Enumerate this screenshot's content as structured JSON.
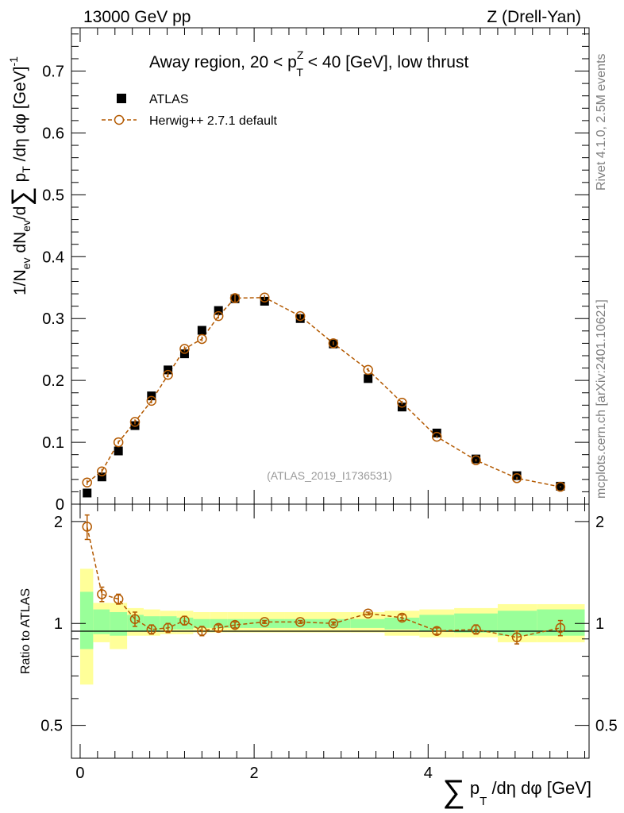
{
  "header": {
    "energy": "13000 GeV pp",
    "process": "Z (Drell-Yan)"
  },
  "side_labels": {
    "rivet": "Rivet 4.1.0,  2.5M events",
    "mcplots": "mcplots.cern.ch [arXiv:2401.10621]"
  },
  "chart_data": {
    "type": "scatter",
    "title": "Away region, 20 < pZT < 40 [GeV], low thrust",
    "title_parts": {
      "before": "Away region, 20 < p",
      "sup": "Z",
      "sub": "T",
      "after": " < 40 [GeV], low thrust"
    },
    "analysis_id": "(ATLAS_2019_I1736531)",
    "ylabel": "1/Nev dNev/d∑pT /dη dφ  [GeV]-1",
    "ratio_ylabel": "Ratio to ATLAS",
    "xlabel": "∑pT /dη dφ [GeV]",
    "xlim": [
      -0.1,
      5.85
    ],
    "ylim": [
      0,
      0.77
    ],
    "ratio_ylim": [
      0.4,
      2.25
    ],
    "x_ticks": [
      0,
      2,
      4
    ],
    "y_ticks": [
      0,
      0.1,
      0.2,
      0.3,
      0.4,
      0.5,
      0.6,
      0.7
    ],
    "ratio_ticks": [
      0.5,
      1,
      2
    ],
    "legend": {
      "data": "ATLAS",
      "mc": "Herwig++ 2.7.1 default",
      "placement": "top-left"
    },
    "x": [
      0.08,
      0.25,
      0.44,
      0.63,
      0.82,
      1.01,
      1.2,
      1.4,
      1.59,
      1.78,
      2.12,
      2.53,
      2.91,
      3.31,
      3.7,
      4.1,
      4.55,
      5.02,
      5.52
    ],
    "atlas": [
      0.018,
      0.044,
      0.086,
      0.127,
      0.175,
      0.217,
      0.243,
      0.281,
      0.313,
      0.332,
      0.328,
      0.3,
      0.259,
      0.203,
      0.157,
      0.115,
      0.073,
      0.046,
      0.029
    ],
    "herwig": [
      0.035,
      0.053,
      0.1,
      0.133,
      0.167,
      0.209,
      0.251,
      0.267,
      0.304,
      0.333,
      0.334,
      0.304,
      0.26,
      0.217,
      0.164,
      0.109,
      0.071,
      0.042,
      0.028
    ],
    "herwig_err": [
      0.004,
      0.004,
      0.003,
      0.004,
      0.004,
      0.004,
      0.004,
      0.004,
      0.004,
      0.008,
      0.004,
      0.004,
      0.003,
      0.003,
      0.003,
      0.002,
      0.002,
      0.002,
      0.001
    ],
    "ratio": [
      1.93,
      1.22,
      1.18,
      1.03,
      0.96,
      0.97,
      1.02,
      0.95,
      0.97,
      0.99,
      1.01,
      1.01,
      1.0,
      1.07,
      1.04,
      0.95,
      0.96,
      0.91,
      0.97
    ],
    "ratio_err": [
      0.16,
      0.06,
      0.04,
      0.05,
      0.03,
      0.03,
      0.03,
      0.03,
      0.02,
      0.02,
      0.01,
      0.01,
      0.01,
      0.01,
      0.02,
      0.02,
      0.03,
      0.04,
      0.05
    ],
    "bins": [
      [
        0.0,
        0.15
      ],
      [
        0.15,
        0.34
      ],
      [
        0.34,
        0.54
      ],
      [
        0.54,
        0.73
      ],
      [
        0.73,
        0.92
      ],
      [
        0.92,
        1.11
      ],
      [
        1.11,
        1.3
      ],
      [
        1.3,
        1.49
      ],
      [
        1.49,
        1.69
      ],
      [
        1.69,
        1.88
      ],
      [
        1.88,
        2.35
      ],
      [
        2.35,
        2.72
      ],
      [
        2.72,
        3.11
      ],
      [
        3.11,
        3.5
      ],
      [
        3.5,
        3.9
      ],
      [
        3.9,
        4.3
      ],
      [
        4.3,
        4.8
      ],
      [
        4.8,
        5.25
      ],
      [
        5.25,
        5.8
      ]
    ],
    "band_stat": [
      [
        0.84,
        1.24
      ],
      [
        0.93,
        1.1
      ],
      [
        0.92,
        1.08
      ],
      [
        0.95,
        1.06
      ],
      [
        0.95,
        1.05
      ],
      [
        0.96,
        1.05
      ],
      [
        0.96,
        1.04
      ],
      [
        0.97,
        1.03
      ],
      [
        0.97,
        1.03
      ],
      [
        0.97,
        1.03
      ],
      [
        0.97,
        1.03
      ],
      [
        0.97,
        1.03
      ],
      [
        0.97,
        1.03
      ],
      [
        0.97,
        1.03
      ],
      [
        0.96,
        1.04
      ],
      [
        0.95,
        1.06
      ],
      [
        0.94,
        1.07
      ],
      [
        0.92,
        1.09
      ],
      [
        0.92,
        1.1
      ]
    ],
    "band_total": [
      [
        0.66,
        1.45
      ],
      [
        0.88,
        1.15
      ],
      [
        0.84,
        1.15
      ],
      [
        0.92,
        1.11
      ],
      [
        0.92,
        1.1
      ],
      [
        0.93,
        1.09
      ],
      [
        0.93,
        1.09
      ],
      [
        0.94,
        1.08
      ],
      [
        0.94,
        1.08
      ],
      [
        0.94,
        1.08
      ],
      [
        0.94,
        1.08
      ],
      [
        0.94,
        1.08
      ],
      [
        0.94,
        1.08
      ],
      [
        0.94,
        1.08
      ],
      [
        0.92,
        1.09
      ],
      [
        0.91,
        1.1
      ],
      [
        0.91,
        1.11
      ],
      [
        0.88,
        1.14
      ],
      [
        0.88,
        1.14
      ]
    ],
    "colors": {
      "mc": "#b35900",
      "stat_band": "#99ff99",
      "total_band": "#ffff99",
      "data": "#000000"
    }
  }
}
